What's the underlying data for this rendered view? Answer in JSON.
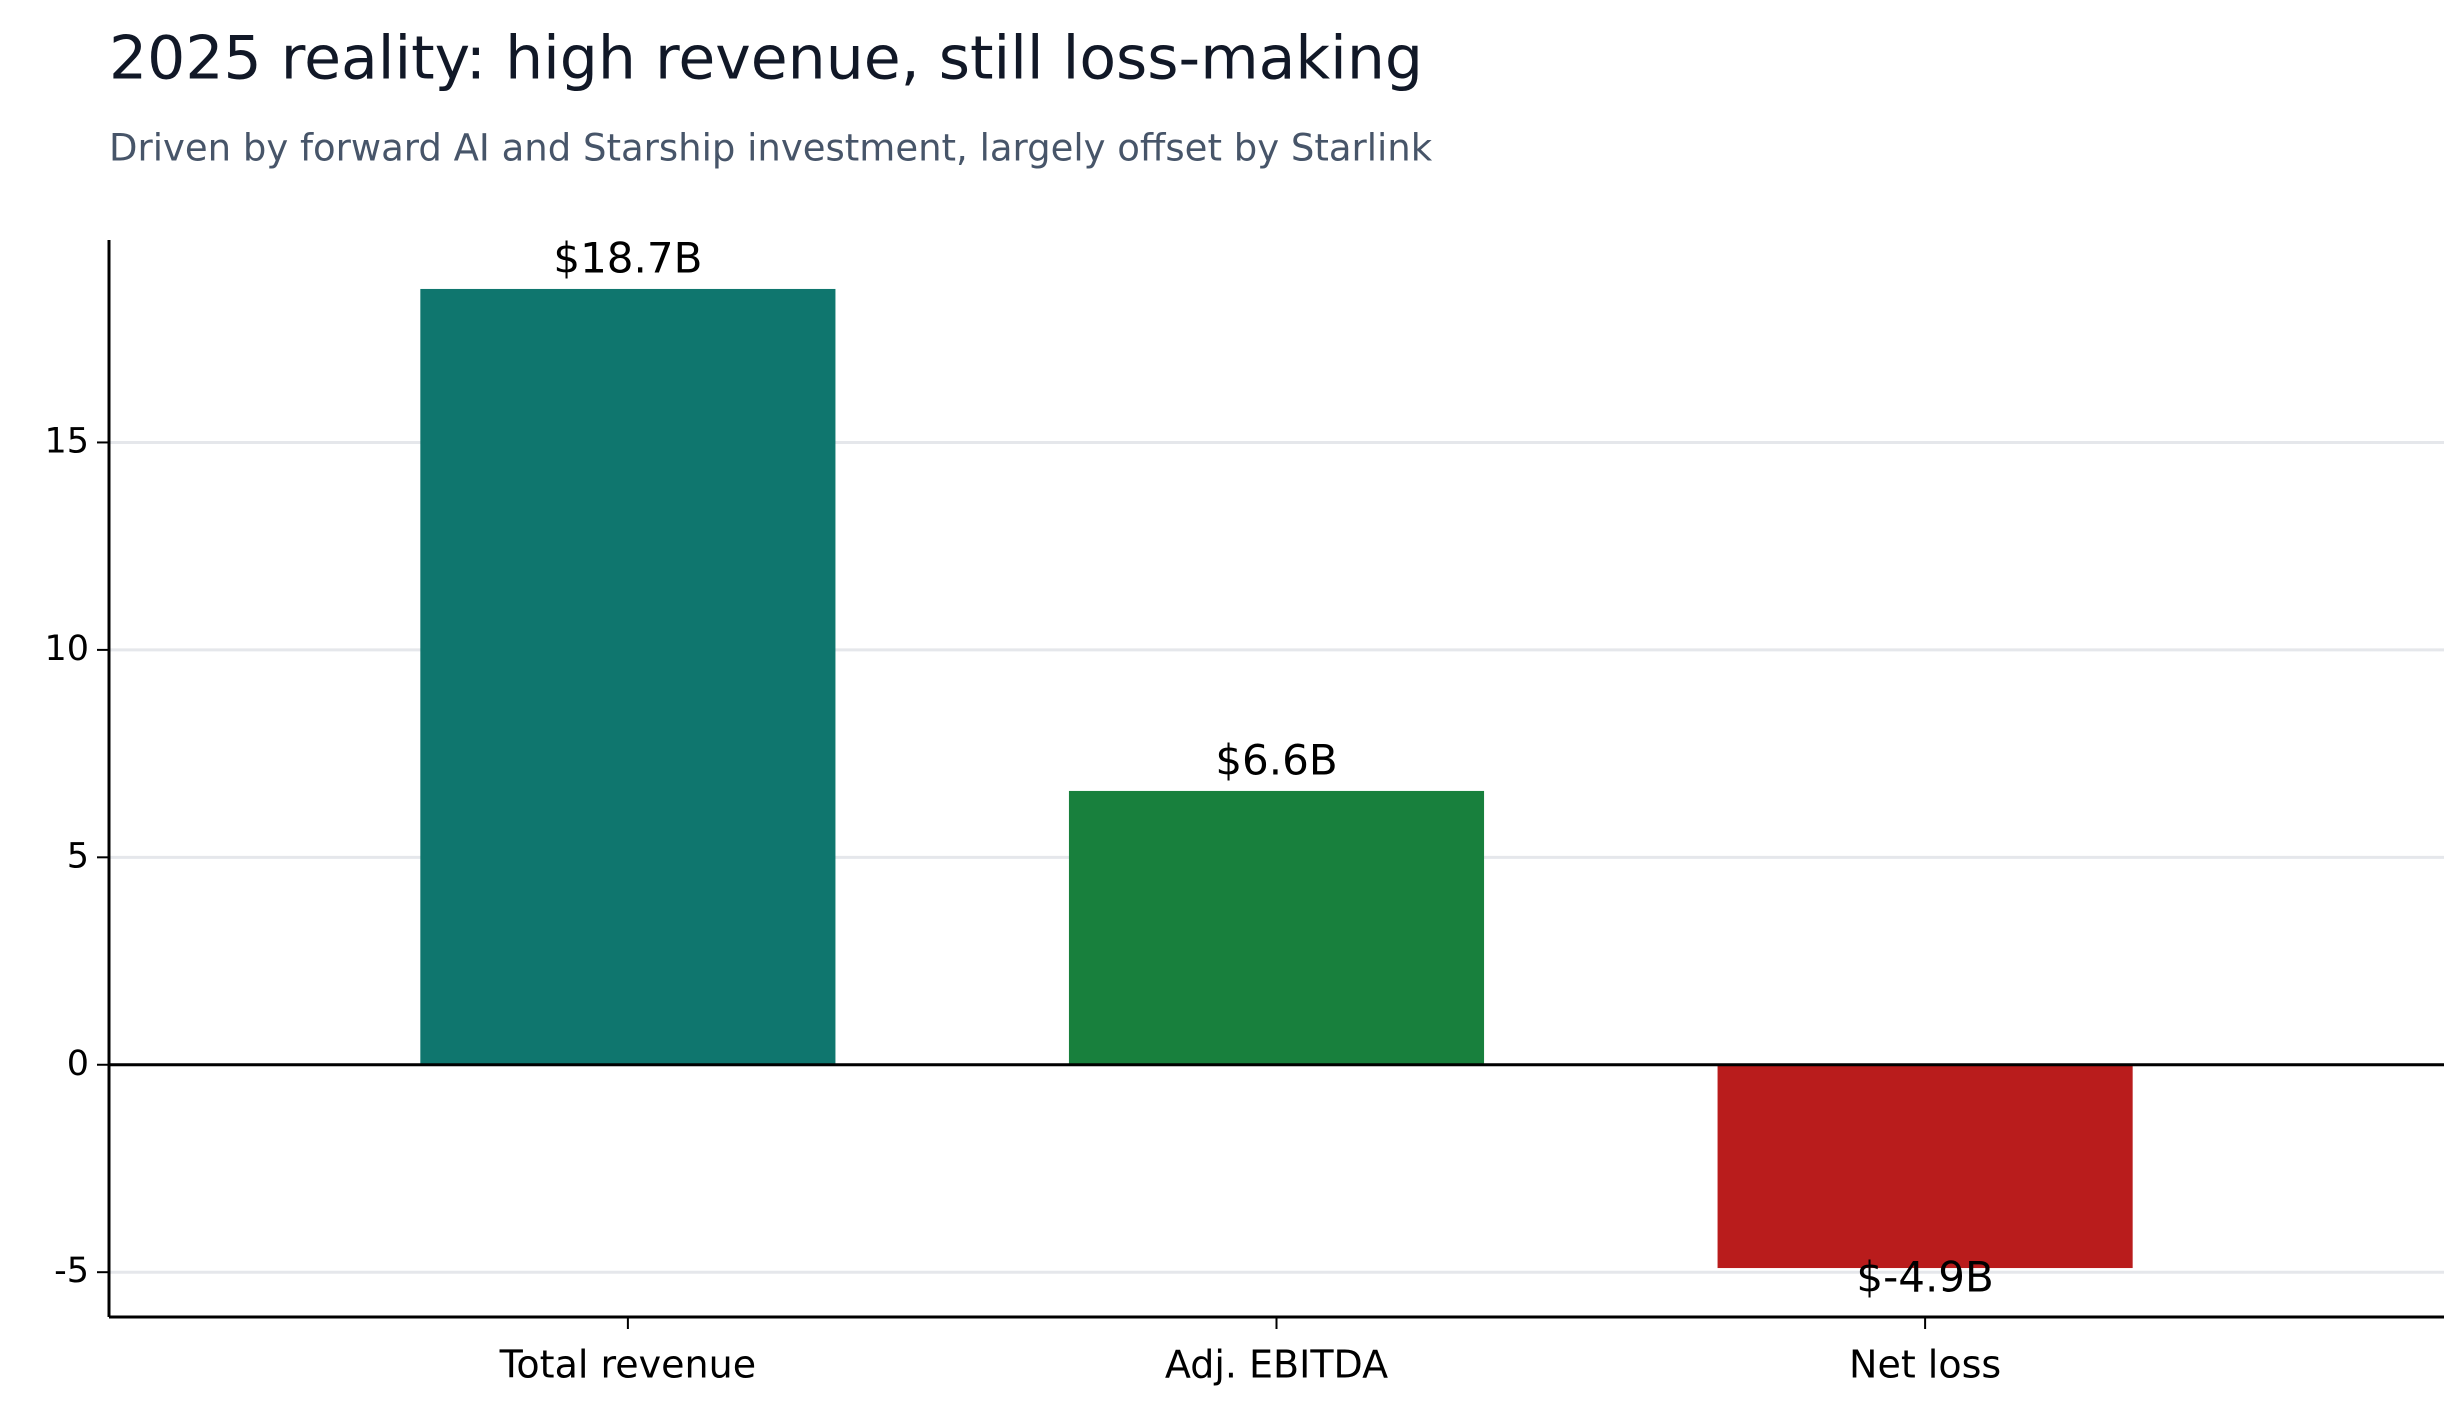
{
  "chart_data": {
    "type": "bar",
    "title": "2025 reality: high revenue, still loss-making",
    "subtitle": "Driven by forward AI and Starship investment, largely offset by Starlink",
    "categories": [
      "Total revenue",
      "Adj. EBITDA",
      "Net loss"
    ],
    "values": [
      18.7,
      6.6,
      -4.9
    ],
    "value_labels": [
      "$18.7B",
      "$6.6B",
      "$-4.9B"
    ],
    "colors": [
      "#0f766e",
      "#18803d",
      "#b91c1c"
    ],
    "ylim": [
      -6.08,
      19.88
    ],
    "yticks": [
      -5,
      0,
      5,
      10,
      15
    ],
    "grid": true
  }
}
